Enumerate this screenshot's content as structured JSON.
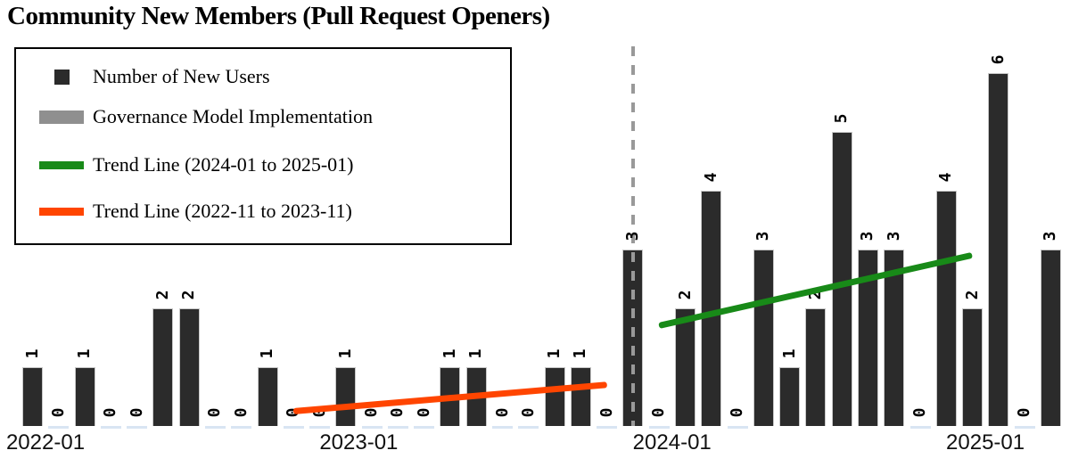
{
  "title": "Community New Members (Pull Request Openers)",
  "legend": {
    "items": [
      {
        "label": "Number of New Users",
        "marker": "square",
        "color": "#2b2b2b"
      },
      {
        "label": "Governance Model Implementation",
        "marker": "thick-line",
        "color": "#8f8f8f"
      },
      {
        "label": "Trend Line (2024-01 to 2025-01)",
        "marker": "line",
        "color": "#188a18"
      },
      {
        "label": "Trend Line (2022-11 to 2023-11)",
        "marker": "line",
        "color": "#ff4500"
      }
    ]
  },
  "colors": {
    "bar_fill": "#2b2b2b",
    "bar_edge": "#c8c8c8",
    "zero_marker": "#d9e5f3",
    "governance_line": "#999999",
    "trend_recent": "#188a18",
    "trend_early": "#ff4500",
    "text": "#000000"
  },
  "x_axis": {
    "tick_labels": [
      "2022-01",
      "2023-01",
      "2024-01",
      "2025-01"
    ],
    "tick_month_indices": [
      0,
      12,
      24,
      36
    ]
  },
  "chart_data": {
    "type": "bar",
    "title": "Community New Members (Pull Request Openers)",
    "series_name": "Number of New Users",
    "categories": [
      "2022-01",
      "2022-02",
      "2022-03",
      "2022-04",
      "2022-05",
      "2022-06",
      "2022-07",
      "2022-08",
      "2022-09",
      "2022-10",
      "2022-11",
      "2022-12",
      "2023-01",
      "2023-02",
      "2023-03",
      "2023-04",
      "2023-05",
      "2023-06",
      "2023-07",
      "2023-08",
      "2023-09",
      "2023-10",
      "2023-11",
      "2023-12",
      "2024-01",
      "2024-02",
      "2024-03",
      "2024-04",
      "2024-05",
      "2024-06",
      "2024-07",
      "2024-08",
      "2024-09",
      "2024-10",
      "2024-11",
      "2024-12",
      "2025-01",
      "2025-02",
      "2025-03",
      "2025-04"
    ],
    "values": [
      1,
      0,
      1,
      0,
      0,
      2,
      2,
      0,
      0,
      1,
      0,
      0,
      1,
      0,
      0,
      0,
      1,
      1,
      0,
      0,
      1,
      1,
      0,
      3,
      0,
      2,
      4,
      0,
      3,
      1,
      2,
      5,
      3,
      3,
      0,
      4,
      2,
      6,
      0,
      3
    ],
    "bar_value_labels_shown": true,
    "governance_event": {
      "name": "Governance Model Implementation",
      "month": "2023-12",
      "style": "dashed-vertical-line"
    },
    "trend_lines": [
      {
        "name": "Trend Line (2024-01 to 2025-01)",
        "start_month": "2024-01",
        "end_month": "2025-01",
        "start_value": 1.7,
        "end_value": 2.9,
        "color": "#188a18"
      },
      {
        "name": "Trend Line (2022-11 to 2023-11)",
        "start_month": "2022-11",
        "end_month": "2023-11",
        "start_value": 0.25,
        "end_value": 0.7,
        "color": "#ff4500"
      }
    ],
    "xlabel": "",
    "ylabel": "",
    "ylim": [
      0,
      6.6
    ],
    "grid": false,
    "y_axis_shown": false,
    "legend_position": "upper-left"
  }
}
